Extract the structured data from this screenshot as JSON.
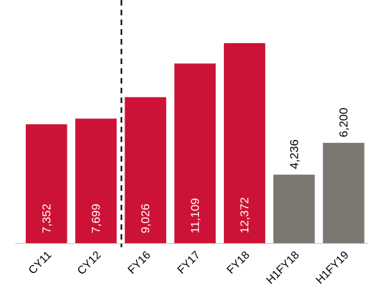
{
  "chart_data": {
    "type": "bar",
    "categories": [
      "CY11",
      "CY12",
      "FY16",
      "FY17",
      "FY18",
      "H1FY18",
      "H1FY19"
    ],
    "values": [
      7352,
      7699,
      9026,
      11109,
      12372,
      4236,
      6200
    ],
    "value_labels": [
      "7,352",
      "7,699",
      "9,026",
      "11,109",
      "12,372",
      "4,236",
      "6,200"
    ],
    "label_positions": [
      "inside",
      "inside",
      "inside",
      "inside",
      "inside",
      "above",
      "above"
    ],
    "bar_colors": [
      "#cc1236",
      "#cc1236",
      "#cc1236",
      "#cc1236",
      "#cc1236",
      "#7a7870",
      "#7a7870"
    ],
    "label_colors": [
      "#ffffff",
      "#ffffff",
      "#ffffff",
      "#ffffff",
      "#ffffff",
      "#000000",
      "#000000"
    ],
    "divider_after_category": "CY12",
    "ylim": [
      0,
      13400
    ],
    "title": "",
    "xlabel": "",
    "ylabel": "",
    "grid": false,
    "legend": "none"
  }
}
